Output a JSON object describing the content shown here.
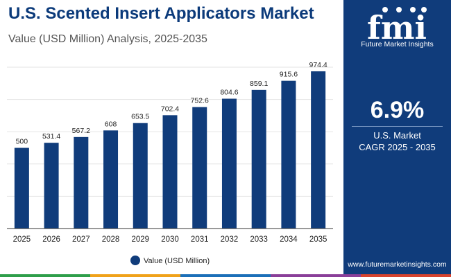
{
  "header": {
    "title": "U.S. Scented Insert Applicators Market",
    "subtitle": "Value (USD Million) Analysis, 2025-2035"
  },
  "chart_data": {
    "type": "bar",
    "categories": [
      "2025",
      "2026",
      "2027",
      "2028",
      "2029",
      "2030",
      "2031",
      "2032",
      "2033",
      "2034",
      "2035"
    ],
    "series": [
      {
        "name": "Value (USD Million)",
        "values": [
          500,
          531.4,
          567.2,
          608,
          653.5,
          702.4,
          752.6,
          804.6,
          859.1,
          915.6,
          974.4
        ],
        "value_labels": [
          "500",
          "531.4",
          "567.2",
          "608",
          "653.5",
          "702.4",
          "752.6",
          "804.6",
          "859.1",
          "915.6",
          "974.4"
        ]
      }
    ],
    "ylim": [
      0,
      1000
    ],
    "grid": true,
    "legend": "bottom-center",
    "colors": {
      "bar": "#103c7b",
      "grid": "#e3e3e3",
      "axis": "#333333",
      "text": "#222222"
    }
  },
  "side_panel": {
    "logo_text": "fmi",
    "logo_tagline": "Future Market Insights",
    "cagr_value": "6.9%",
    "cagr_label_line1": "U.S. Market",
    "cagr_label_line2": "CAGR 2025 - 2035",
    "website": "www.futuremarketinsights.com",
    "background": "#103c7b"
  },
  "stripe_colors": [
    "#2e9e4a",
    "#f0a21a",
    "#1c6fb8",
    "#8a3f99",
    "#d8432e"
  ]
}
